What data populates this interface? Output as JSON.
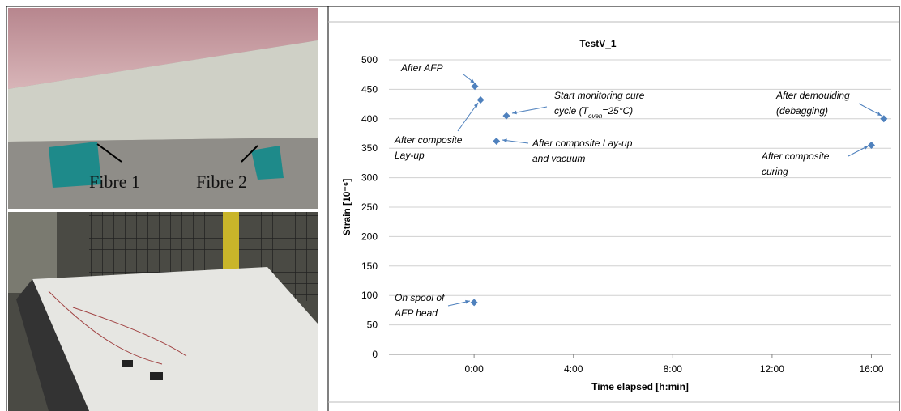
{
  "photo_labels": [
    "Fibre 1",
    "Fibre 2"
  ],
  "chart_data": {
    "type": "scatter",
    "title": "TestV_1",
    "x_label": "Time elapsed [h:min]",
    "y_label": "Strain [10⁻⁶]",
    "series": [
      {
        "name": "TestV_1",
        "color": "#4f81bd",
        "x": [
          0,
          0.03,
          0.26,
          1.3,
          0.9,
          16.0,
          16.5
        ],
        "values": [
          88,
          455,
          432,
          405,
          362,
          355,
          400
        ]
      }
    ],
    "xlim": [
      -3.43,
      16.8
    ],
    "xticks": [
      {
        "value": 0,
        "label": "0:00"
      },
      {
        "value": 4,
        "label": "4:00"
      },
      {
        "value": 8,
        "label": "8:00"
      },
      {
        "value": 12,
        "label": "12:00"
      },
      {
        "value": 16,
        "label": "16:00"
      }
    ],
    "ylim": [
      0,
      500
    ],
    "yticks": [
      0,
      50,
      100,
      150,
      200,
      250,
      300,
      350,
      400,
      450,
      500
    ],
    "grid": true,
    "annotations": [
      {
        "lines": [
          "After AFP"
        ]
      },
      {
        "lines": [
          "After composite",
          "Lay-up"
        ]
      },
      {
        "lines": [
          "Start monitoring cure",
          [
            "cycle (T",
            "oven",
            "=25°C)"
          ]
        ]
      },
      {
        "lines": [
          "After composite Lay-up",
          "and vacuum"
        ]
      },
      {
        "lines": [
          "After demoulding",
          "(debagging)"
        ]
      },
      {
        "lines": [
          "After composite",
          "curing"
        ]
      },
      {
        "lines": [
          "On spool of",
          "AFP head"
        ]
      }
    ]
  }
}
